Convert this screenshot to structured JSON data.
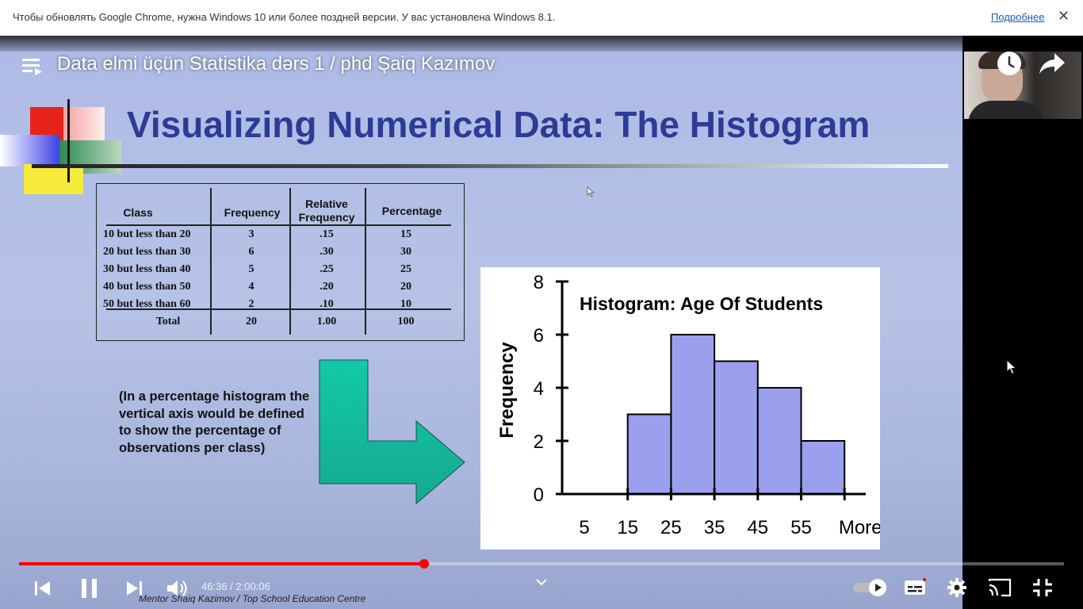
{
  "infobar": {
    "message": "Чтобы обновлять Google Chrome, нужна Windows 10 или более поздней версии. У вас установлена Windows 8.1.",
    "more_link": "Подробнее",
    "close_glyph": "✕"
  },
  "video": {
    "title": "Data elmi üçün Statistika dərs 1 / phd Şaiq Kazımov",
    "time_current": "46:36",
    "time_separator": " / ",
    "time_total": "2:00:06",
    "progress_fraction": 0.388
  },
  "slide": {
    "title": "Visualizing Numerical Data: The Histogram",
    "table": {
      "headers": [
        "Class",
        "Frequency",
        "Relative Frequency",
        "Percentage"
      ],
      "rows": [
        [
          "10 but less than 20",
          "3",
          ".15",
          "15"
        ],
        [
          "20 but less than 30",
          "6",
          ".30",
          "30"
        ],
        [
          "30 but less than 40",
          "5",
          ".25",
          "25"
        ],
        [
          "40 but less than 50",
          "4",
          ".20",
          "20"
        ],
        [
          "50 but less than 60",
          "2",
          ".10",
          "10"
        ]
      ],
      "total": [
        "Total",
        "20",
        "1.00",
        "100"
      ]
    },
    "note": "(In a percentage histogram the vertical axis would be defined to show the percentage of observations per class)",
    "footer_credit": "Mentor Shaiq Kazimov / Top School Education Centre"
  },
  "chart_data": {
    "type": "bar",
    "title": "Histogram: Age Of Students",
    "ylabel": "Frequency",
    "xlabel": "",
    "categories": [
      "10-20",
      "20-30",
      "30-40",
      "40-50",
      "50-60"
    ],
    "values": [
      3,
      6,
      5,
      4,
      2
    ],
    "x_tick_labels": [
      "5",
      "15",
      "25",
      "35",
      "45",
      "55",
      "More"
    ],
    "y_ticks": [
      0,
      2,
      4,
      6,
      8
    ],
    "ylim": [
      0,
      8
    ],
    "bar_color": "#9aa0ee",
    "grid": false
  },
  "icons": {
    "menu": "playlist-icon",
    "watch_later": "clock-icon",
    "share": "share-icon",
    "prev": "previous-icon",
    "pause": "pause-icon",
    "next": "next-icon",
    "volume": "volume-icon",
    "autoplay": "autoplay-toggle-icon",
    "subtitles": "subtitles-icon",
    "settings": "gear-icon",
    "cast": "cast-icon",
    "fullscreen_exit": "exit-fullscreen-icon"
  },
  "colors": {
    "progress": "#ff0000",
    "slide_title": "#2c3b95",
    "arrow": "#14b89a"
  }
}
